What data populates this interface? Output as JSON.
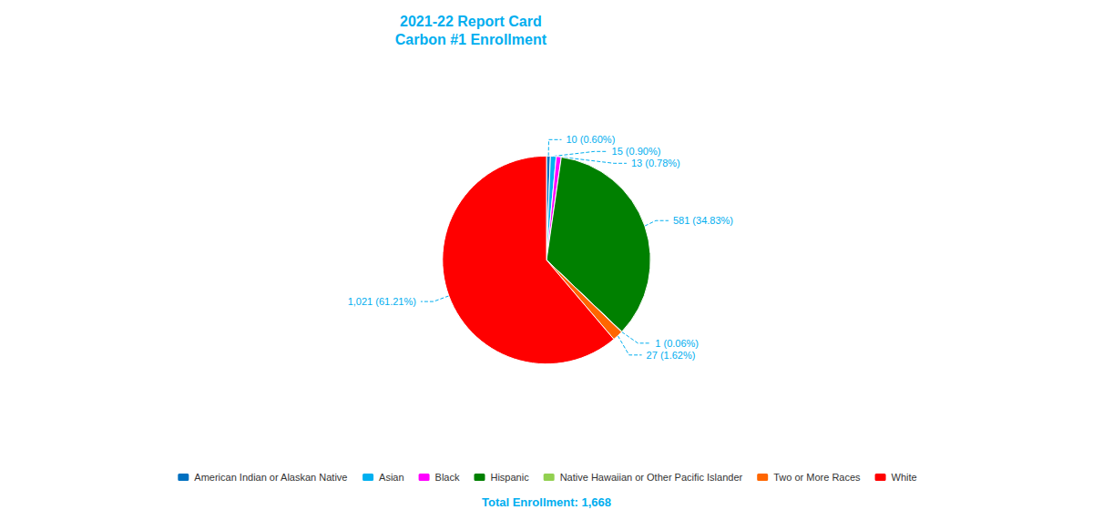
{
  "chart_data": {
    "type": "pie",
    "title": "2021-22 Report Card\nCarbon #1 Enrollment",
    "categories": [
      "American Indian or Alaskan Native",
      "Asian",
      "Black",
      "Hispanic",
      "Native Hawaiian or Other Pacific Islander",
      "Two or More Races",
      "White"
    ],
    "values": [
      10,
      15,
      13,
      581,
      1,
      27,
      1021
    ],
    "value_labels": [
      "10 (0.60%)",
      "15 (0.90%)",
      "13 (0.78%)",
      "581 (34.83%)",
      "1 (0.06%)",
      "27 (1.62%)",
      "1,021 (61.21%)"
    ],
    "colors": [
      "#0070C0",
      "#00B0F0",
      "#FF00FF",
      "#008000",
      "#92D050",
      "#FF6600",
      "#FF0000"
    ],
    "data_labels": true,
    "legend": "bottom",
    "annotations": [
      "Total Enrollment: 1,668"
    ]
  }
}
